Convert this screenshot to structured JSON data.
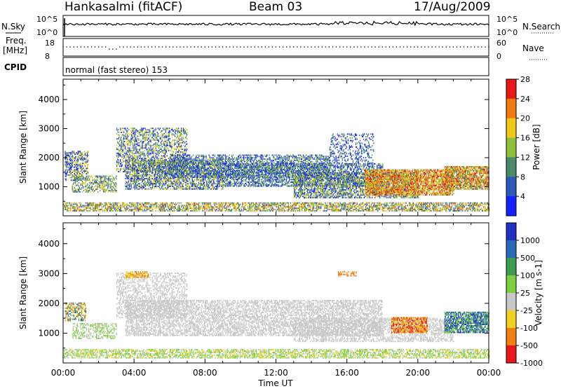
{
  "header": {
    "station": "Hankasalmi (fitACF)",
    "beam": "Beam 03",
    "date": "17/Aug/2009"
  },
  "strips": {
    "nsky_label": "N.Sky",
    "nsky_ticks": [
      "10^5",
      "10^0"
    ],
    "nsearch_label": "N.Search",
    "nsearch_ticks": [
      "10^5",
      "10^0"
    ],
    "freq_label": "Freq.",
    "freq_unit": "[MHz]",
    "freq_ticks": [
      "18",
      "8"
    ],
    "nave_label": "Nave",
    "nave_ticks": [
      "60",
      "0"
    ],
    "cpid_label": "CPID",
    "cpid_value": "normal (fast stereo) 153"
  },
  "chart_data": [
    {
      "type": "heatmap",
      "name": "power",
      "xlabel": "",
      "ylabel": "Slant Range [km]",
      "ylim": [
        0,
        4700
      ],
      "yticks": [
        1000,
        2000,
        3000,
        4000
      ],
      "xlim_hours": [
        0,
        24
      ],
      "colorbar_label": "Power [dB]",
      "colorbar_ticks": [
        "4",
        "8",
        "12",
        "16",
        "20",
        "24",
        "28"
      ],
      "colorbar_colors": [
        "#1420ff",
        "#2c58b8",
        "#4a8a6a",
        "#8ec23c",
        "#f2c818",
        "#f07a10",
        "#e81818"
      ],
      "regions": [
        {
          "t0": 0.0,
          "t1": 24.0,
          "r0": 150,
          "r1": 450,
          "density": 0.55,
          "levels": [
            1,
            2,
            3,
            4,
            5
          ]
        },
        {
          "t0": 0.1,
          "t1": 1.4,
          "r0": 1200,
          "r1": 2200,
          "density": 0.5,
          "levels": [
            0,
            1,
            3,
            4
          ]
        },
        {
          "t0": 0.5,
          "t1": 3.0,
          "r0": 800,
          "r1": 1350,
          "density": 0.45,
          "levels": [
            1,
            2,
            3,
            4
          ]
        },
        {
          "t0": 3.0,
          "t1": 7.0,
          "r0": 1500,
          "r1": 3000,
          "density": 0.4,
          "levels": [
            0,
            1,
            2,
            3,
            4
          ]
        },
        {
          "t0": 3.5,
          "t1": 9.0,
          "r0": 900,
          "r1": 1900,
          "density": 0.55,
          "levels": [
            0,
            1,
            2,
            3,
            4
          ]
        },
        {
          "t0": 6.0,
          "t1": 15.0,
          "r0": 1300,
          "r1": 2100,
          "density": 0.45,
          "levels": [
            0,
            1,
            2,
            3
          ]
        },
        {
          "t0": 9.0,
          "t1": 18.0,
          "r0": 1000,
          "r1": 1800,
          "density": 0.5,
          "levels": [
            0,
            1,
            2,
            3
          ]
        },
        {
          "t0": 13.0,
          "t1": 20.0,
          "r0": 600,
          "r1": 1500,
          "density": 0.55,
          "levels": [
            0,
            1,
            2,
            3,
            4
          ]
        },
        {
          "t0": 17.0,
          "t1": 22.0,
          "r0": 700,
          "r1": 1600,
          "density": 0.7,
          "levels": [
            3,
            4,
            5,
            6
          ]
        },
        {
          "t0": 21.5,
          "t1": 24.0,
          "r0": 900,
          "r1": 1700,
          "density": 0.75,
          "levels": [
            2,
            3,
            4,
            5,
            6
          ]
        },
        {
          "t0": 15.0,
          "t1": 17.5,
          "r0": 1800,
          "r1": 2800,
          "density": 0.25,
          "levels": [
            0,
            1,
            2
          ]
        }
      ]
    },
    {
      "type": "heatmap",
      "name": "velocity",
      "xlabel": "Time UT",
      "ylabel": "Slant Range [km]",
      "ylim": [
        0,
        4700
      ],
      "yticks": [
        1000,
        2000,
        3000,
        4000
      ],
      "xlim_hours": [
        0,
        24
      ],
      "xticks": [
        "00:00",
        "04:00",
        "08:00",
        "12:00",
        "16:00",
        "20:00",
        "00:00"
      ],
      "colorbar_label": "Velocity [m s-1]",
      "colorbar_ticks": [
        "1000",
        "500",
        "100",
        "25",
        "-25",
        "-100",
        "-500",
        "-1000"
      ],
      "colorbar_colors": [
        "#2030c0",
        "#2a6ab8",
        "#3e9a50",
        "#7cd040",
        "#c8c8c8",
        "#f0d020",
        "#f08010",
        "#e81818"
      ],
      "regions": [
        {
          "t0": 0.0,
          "t1": 24.0,
          "r0": 150,
          "r1": 450,
          "density": 0.5,
          "levels": [
            3,
            3,
            5,
            4
          ]
        },
        {
          "t0": 0.1,
          "t1": 1.3,
          "r0": 1400,
          "r1": 2000,
          "density": 0.5,
          "levels": [
            1,
            2,
            6,
            5
          ]
        },
        {
          "t0": 0.5,
          "t1": 3.0,
          "r0": 800,
          "r1": 1300,
          "density": 0.4,
          "levels": [
            3,
            4
          ]
        },
        {
          "t0": 3.0,
          "t1": 7.0,
          "r0": 1500,
          "r1": 3000,
          "density": 0.35,
          "levels": [
            4
          ]
        },
        {
          "t0": 3.5,
          "t1": 18.0,
          "r0": 900,
          "r1": 2100,
          "density": 0.5,
          "levels": [
            4
          ]
        },
        {
          "t0": 13.0,
          "t1": 22.0,
          "r0": 700,
          "r1": 1500,
          "density": 0.45,
          "levels": [
            4
          ]
        },
        {
          "t0": 18.5,
          "t1": 20.5,
          "r0": 1000,
          "r1": 1500,
          "density": 0.7,
          "levels": [
            6,
            7,
            5
          ]
        },
        {
          "t0": 21.5,
          "t1": 24.0,
          "r0": 1000,
          "r1": 1700,
          "density": 0.7,
          "levels": [
            0,
            1,
            2,
            3
          ]
        },
        {
          "t0": 3.5,
          "t1": 4.8,
          "r0": 2850,
          "r1": 3050,
          "density": 0.6,
          "levels": [
            5,
            6
          ]
        },
        {
          "t0": 15.5,
          "t1": 16.5,
          "r0": 2900,
          "r1": 3050,
          "density": 0.5,
          "levels": [
            6
          ]
        }
      ]
    }
  ]
}
